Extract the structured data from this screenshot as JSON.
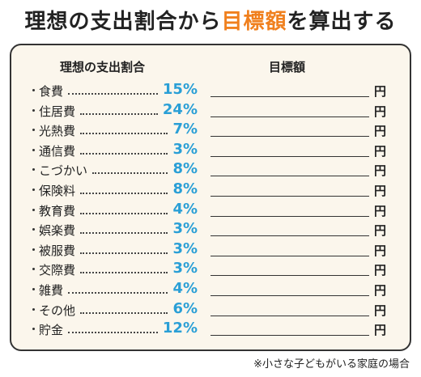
{
  "title": {
    "before": "理想の支出割合から",
    "highlight": "目標額",
    "after": "を算出する"
  },
  "table": {
    "header": [
      "理想の支出割合",
      "目標額"
    ],
    "unit": "円",
    "rows": [
      {
        "label": "食費",
        "percent": "15%"
      },
      {
        "label": "住居費",
        "percent": "24%"
      },
      {
        "label": "光熱費",
        "percent": "7%"
      },
      {
        "label": "通信費",
        "percent": "3%"
      },
      {
        "label": "こづかい",
        "percent": "8%"
      },
      {
        "label": "保険料",
        "percent": "8%"
      },
      {
        "label": "教育費",
        "percent": "4%"
      },
      {
        "label": "娯楽費",
        "percent": "3%"
      },
      {
        "label": "被服費",
        "percent": "3%"
      },
      {
        "label": "交際費",
        "percent": "3%"
      },
      {
        "label": "雑費",
        "percent": "4%"
      },
      {
        "label": "その他",
        "percent": "6%"
      },
      {
        "label": "貯金",
        "percent": "12%"
      }
    ]
  },
  "footnote": "※小さな子どもがいる家庭の場合"
}
